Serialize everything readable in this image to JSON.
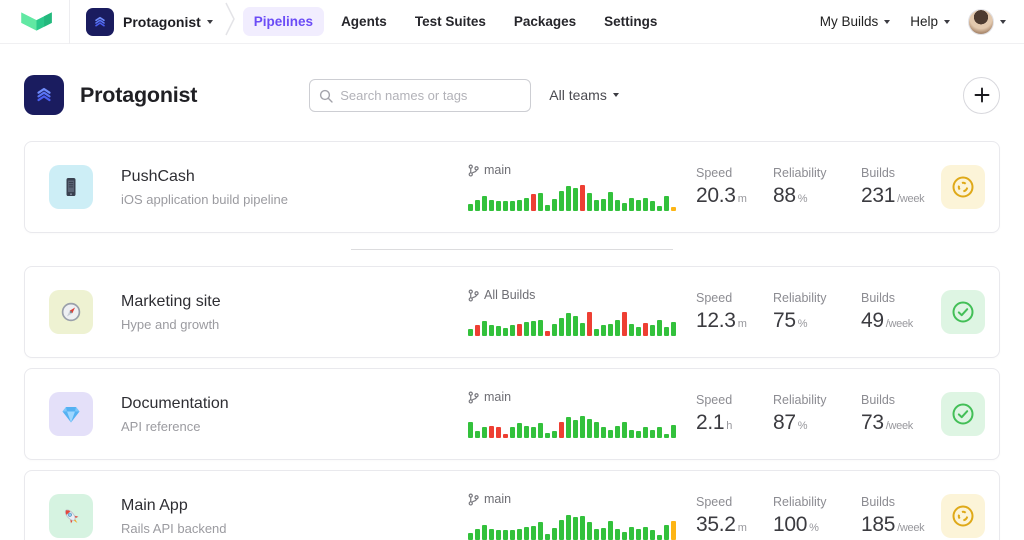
{
  "topnav": {
    "org_switcher": {
      "label": "Protagonist"
    },
    "items": [
      {
        "label": "Pipelines",
        "active": true
      },
      {
        "label": "Agents",
        "active": false
      },
      {
        "label": "Test Suites",
        "active": false
      },
      {
        "label": "Packages",
        "active": false
      },
      {
        "label": "Settings",
        "active": false
      }
    ],
    "right_items": [
      {
        "label": "My Builds"
      },
      {
        "label": "Help"
      }
    ]
  },
  "header": {
    "title": "Protagonist",
    "search_placeholder": "Search names or tags",
    "teams_filter_label": "All teams"
  },
  "stats_labels": {
    "speed": "Speed",
    "reliability": "Reliability",
    "builds": "Builds"
  },
  "pipelines": [
    {
      "name": "PushCash",
      "description": "iOS application build pipeline",
      "icon": "iphone",
      "tile_bg": "#cdeef6",
      "branch": "main",
      "speed": {
        "value": "20.3",
        "unit": "m"
      },
      "reliability": {
        "value": "88",
        "unit": "%"
      },
      "builds": {
        "value": "231",
        "unit": "/week"
      },
      "status": "running",
      "bars": [
        [
          7,
          "g"
        ],
        [
          11,
          "g"
        ],
        [
          15,
          "g"
        ],
        [
          11,
          "g"
        ],
        [
          10,
          "g"
        ],
        [
          10,
          "g"
        ],
        [
          10,
          "g"
        ],
        [
          11,
          "g"
        ],
        [
          13,
          "g"
        ],
        [
          17,
          "r"
        ],
        [
          18,
          "g"
        ],
        [
          6,
          "g"
        ],
        [
          12,
          "g"
        ],
        [
          20,
          "g"
        ],
        [
          25,
          "g"
        ],
        [
          23,
          "g"
        ],
        [
          26,
          "r"
        ],
        [
          18,
          "g"
        ],
        [
          11,
          "g"
        ],
        [
          12,
          "g"
        ],
        [
          19,
          "g"
        ],
        [
          11,
          "g"
        ],
        [
          8,
          "g"
        ],
        [
          13,
          "g"
        ],
        [
          11,
          "g"
        ],
        [
          13,
          "g"
        ],
        [
          10,
          "g"
        ],
        [
          5,
          "g"
        ],
        [
          15,
          "g"
        ],
        [
          4,
          "y"
        ]
      ]
    },
    {
      "name": "Marketing site",
      "description": "Hype and growth",
      "icon": "compass",
      "tile_bg": "#eef2d2",
      "branch": "All Builds",
      "speed": {
        "value": "12.3",
        "unit": "m"
      },
      "reliability": {
        "value": "75",
        "unit": "%"
      },
      "builds": {
        "value": "49",
        "unit": "/week"
      },
      "status": "passed",
      "bars": [
        [
          7,
          "g"
        ],
        [
          11,
          "r"
        ],
        [
          15,
          "g"
        ],
        [
          11,
          "g"
        ],
        [
          10,
          "g"
        ],
        [
          8,
          "g"
        ],
        [
          11,
          "g"
        ],
        [
          12,
          "r"
        ],
        [
          14,
          "g"
        ],
        [
          15,
          "g"
        ],
        [
          16,
          "g"
        ],
        [
          5,
          "r"
        ],
        [
          12,
          "g"
        ],
        [
          18,
          "g"
        ],
        [
          23,
          "g"
        ],
        [
          20,
          "g"
        ],
        [
          13,
          "g"
        ],
        [
          24,
          "r"
        ],
        [
          7,
          "g"
        ],
        [
          11,
          "g"
        ],
        [
          12,
          "g"
        ],
        [
          16,
          "g"
        ],
        [
          24,
          "r"
        ],
        [
          12,
          "g"
        ],
        [
          9,
          "g"
        ],
        [
          13,
          "r"
        ],
        [
          11,
          "g"
        ],
        [
          16,
          "g"
        ],
        [
          9,
          "g"
        ],
        [
          14,
          "g"
        ]
      ]
    },
    {
      "name": "Documentation",
      "description": "API reference",
      "icon": "gem",
      "tile_bg": "#e4e0f9",
      "branch": "main",
      "speed": {
        "value": "2.1",
        "unit": "h"
      },
      "reliability": {
        "value": "87",
        "unit": "%"
      },
      "builds": {
        "value": "73",
        "unit": "/week"
      },
      "status": "passed",
      "bars": [
        [
          16,
          "g"
        ],
        [
          7,
          "g"
        ],
        [
          11,
          "g"
        ],
        [
          12,
          "r"
        ],
        [
          11,
          "r"
        ],
        [
          4,
          "r"
        ],
        [
          11,
          "g"
        ],
        [
          15,
          "g"
        ],
        [
          12,
          "g"
        ],
        [
          11,
          "g"
        ],
        [
          15,
          "g"
        ],
        [
          5,
          "g"
        ],
        [
          7,
          "g"
        ],
        [
          16,
          "r"
        ],
        [
          21,
          "g"
        ],
        [
          18,
          "g"
        ],
        [
          22,
          "g"
        ],
        [
          19,
          "g"
        ],
        [
          16,
          "g"
        ],
        [
          11,
          "g"
        ],
        [
          8,
          "g"
        ],
        [
          12,
          "g"
        ],
        [
          16,
          "g"
        ],
        [
          8,
          "g"
        ],
        [
          7,
          "g"
        ],
        [
          11,
          "g"
        ],
        [
          8,
          "g"
        ],
        [
          11,
          "g"
        ],
        [
          4,
          "g"
        ],
        [
          13,
          "g"
        ]
      ]
    },
    {
      "name": "Main App",
      "description": "Rails API backend",
      "icon": "rocket",
      "tile_bg": "#d6f3e1",
      "branch": "main",
      "speed": {
        "value": "35.2",
        "unit": "m"
      },
      "reliability": {
        "value": "100",
        "unit": "%"
      },
      "builds": {
        "value": "185",
        "unit": "/week"
      },
      "status": "running",
      "bars": [
        [
          7,
          "g"
        ],
        [
          11,
          "g"
        ],
        [
          15,
          "g"
        ],
        [
          11,
          "g"
        ],
        [
          10,
          "g"
        ],
        [
          10,
          "g"
        ],
        [
          10,
          "g"
        ],
        [
          11,
          "g"
        ],
        [
          13,
          "g"
        ],
        [
          14,
          "g"
        ],
        [
          18,
          "g"
        ],
        [
          6,
          "g"
        ],
        [
          12,
          "g"
        ],
        [
          20,
          "g"
        ],
        [
          25,
          "g"
        ],
        [
          23,
          "g"
        ],
        [
          24,
          "g"
        ],
        [
          18,
          "g"
        ],
        [
          11,
          "g"
        ],
        [
          12,
          "g"
        ],
        [
          19,
          "g"
        ],
        [
          11,
          "g"
        ],
        [
          8,
          "g"
        ],
        [
          13,
          "g"
        ],
        [
          11,
          "g"
        ],
        [
          13,
          "g"
        ],
        [
          10,
          "g"
        ],
        [
          5,
          "g"
        ],
        [
          15,
          "g"
        ],
        [
          19,
          "y"
        ]
      ]
    }
  ],
  "colors": {
    "accent_purple": "#6b4cf6",
    "nav_pill_bg": "#f1edfe",
    "bar_green": "#33c13c",
    "bar_red": "#ee3f33",
    "bar_yellow": "#fdb515",
    "status_running_bg": "#fcf4d8",
    "status_running_icon": "#dfa918",
    "status_passed_bg": "#def5e3",
    "status_passed_icon": "#43bf57",
    "brand_green_light": "#61e8a3",
    "brand_green_dark": "#2bc98b",
    "org_icon_bg": "#1a1c5f"
  }
}
